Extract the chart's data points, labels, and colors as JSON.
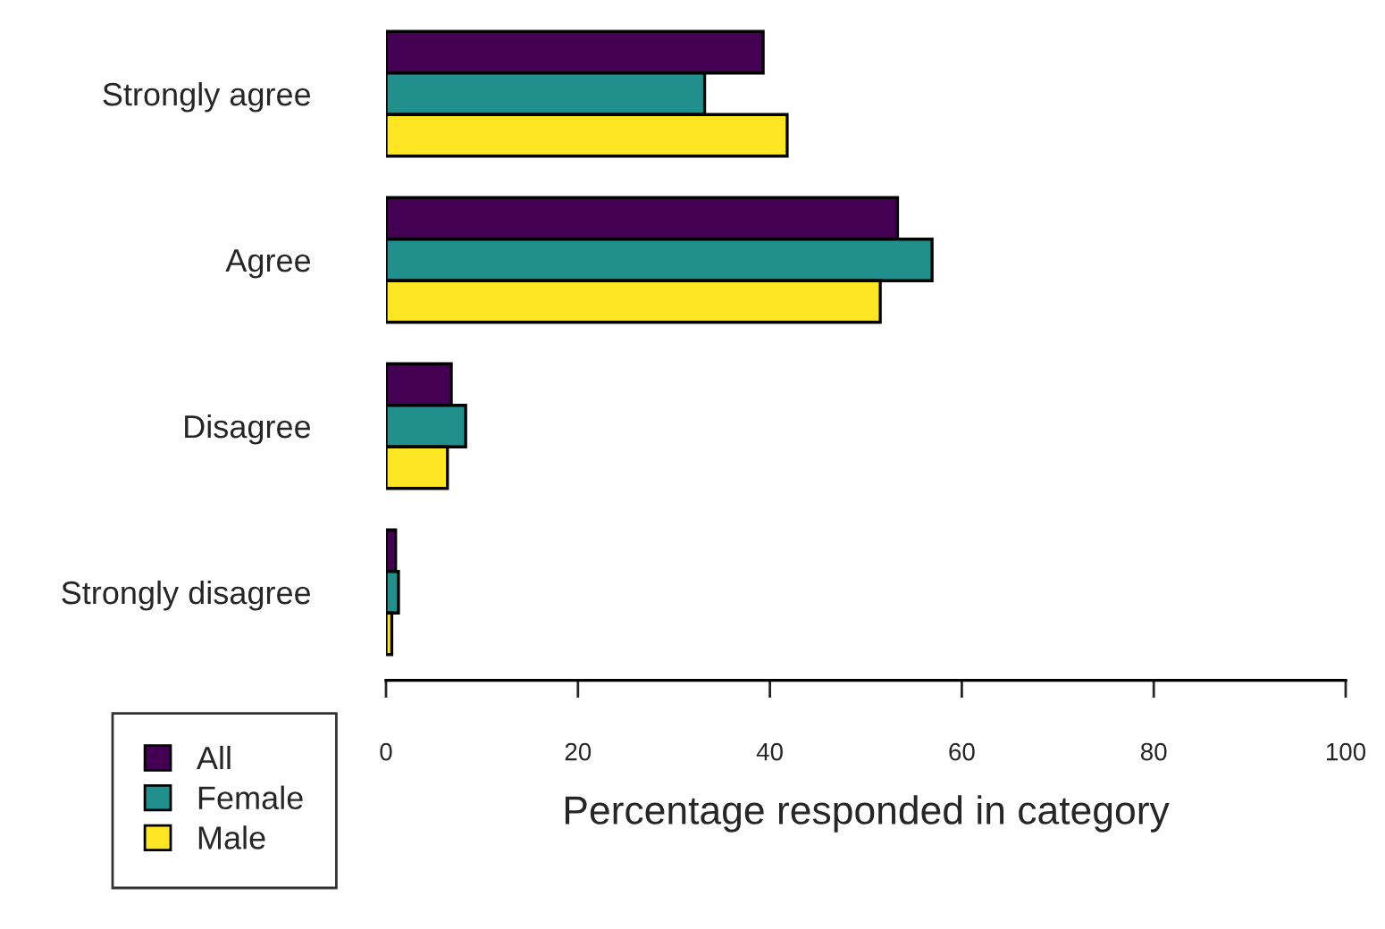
{
  "chart_data": {
    "type": "bar",
    "orientation": "horizontal",
    "xlabel": "Percentage responded in category",
    "categories": [
      "Strongly agree",
      "Agree",
      "Disagree",
      "Strongly disagree"
    ],
    "series": [
      {
        "name": "All",
        "color": "#440154",
        "values": [
          39.3,
          53.3,
          6.8,
          1.0
        ]
      },
      {
        "name": "Female",
        "color": "#21908c",
        "values": [
          33.2,
          56.9,
          8.3,
          1.3
        ]
      },
      {
        "name": "Male",
        "color": "#fde725",
        "values": [
          41.8,
          51.5,
          6.4,
          0.6
        ]
      }
    ],
    "xlim": [
      0,
      100
    ],
    "xticks": [
      0,
      20,
      40,
      60,
      80,
      100
    ],
    "grid": false,
    "legend": "bottom left"
  }
}
